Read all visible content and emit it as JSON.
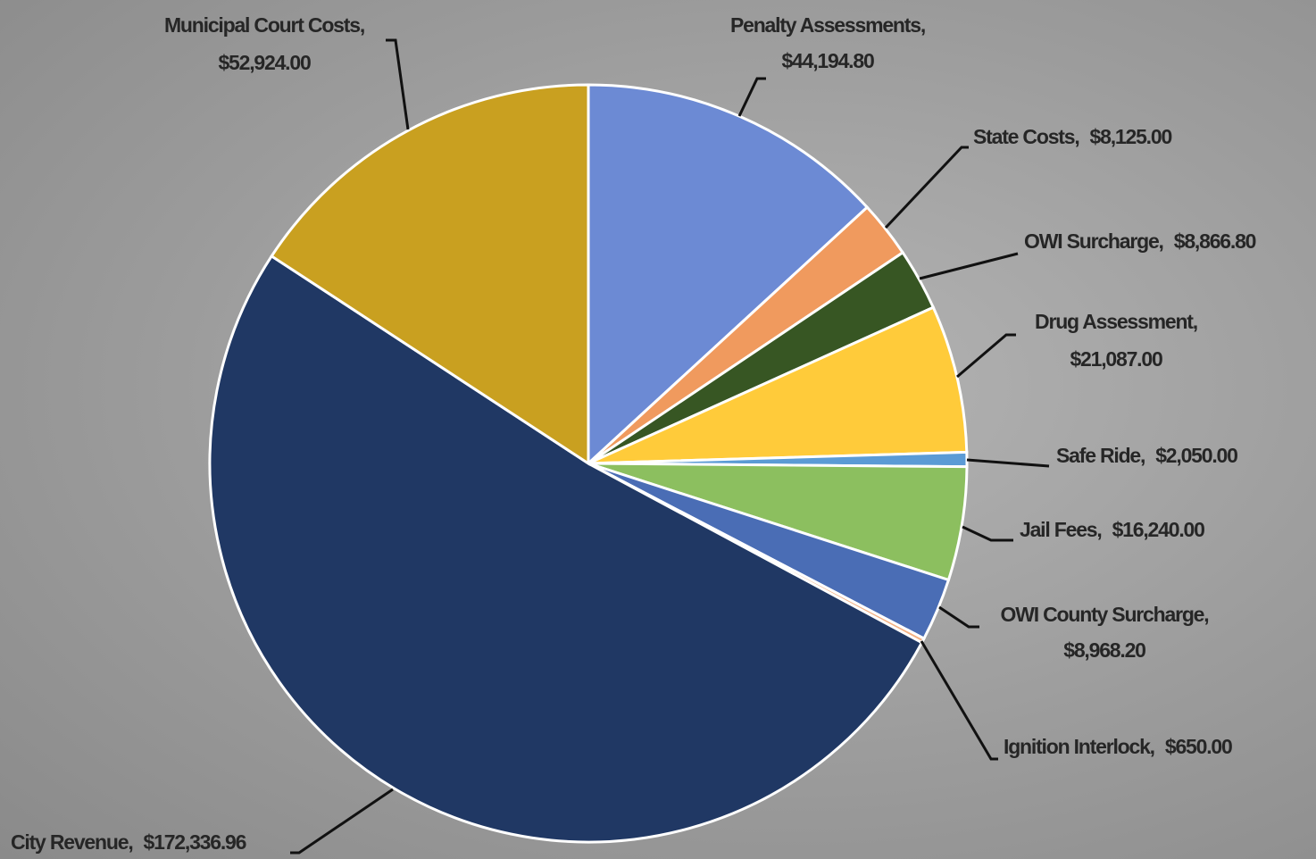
{
  "chart_data": {
    "type": "pie",
    "categories": [
      "Penalty Assessments,",
      "State Costs,",
      "OWI Surcharge,",
      "Drug Assessment,",
      "Safe Ride,",
      "Jail Fees,",
      "OWI County Surcharge,",
      "Ignition Interlock,",
      "City Revenue,",
      "Municipal Court Costs,"
    ],
    "values": [
      44194.8,
      8125.0,
      8866.8,
      21087.0,
      2050.0,
      16240.0,
      8968.2,
      650.0,
      172336.96,
      52924.0
    ],
    "value_labels": [
      "$44,194.80",
      "$8,125.00",
      "$8,866.80",
      "$21,087.00",
      "$2,050.00",
      "$16,240.00",
      "$8,968.20",
      "$650.00",
      "$172,336.96",
      "$52,924.00"
    ],
    "colors": [
      "#6c8ad4",
      "#f09a5e",
      "#375623",
      "#ffcb3a",
      "#5b9bd5",
      "#8cbf5f",
      "#4a6db5",
      "#f4b183",
      "#203864",
      "#c9a020"
    ]
  }
}
